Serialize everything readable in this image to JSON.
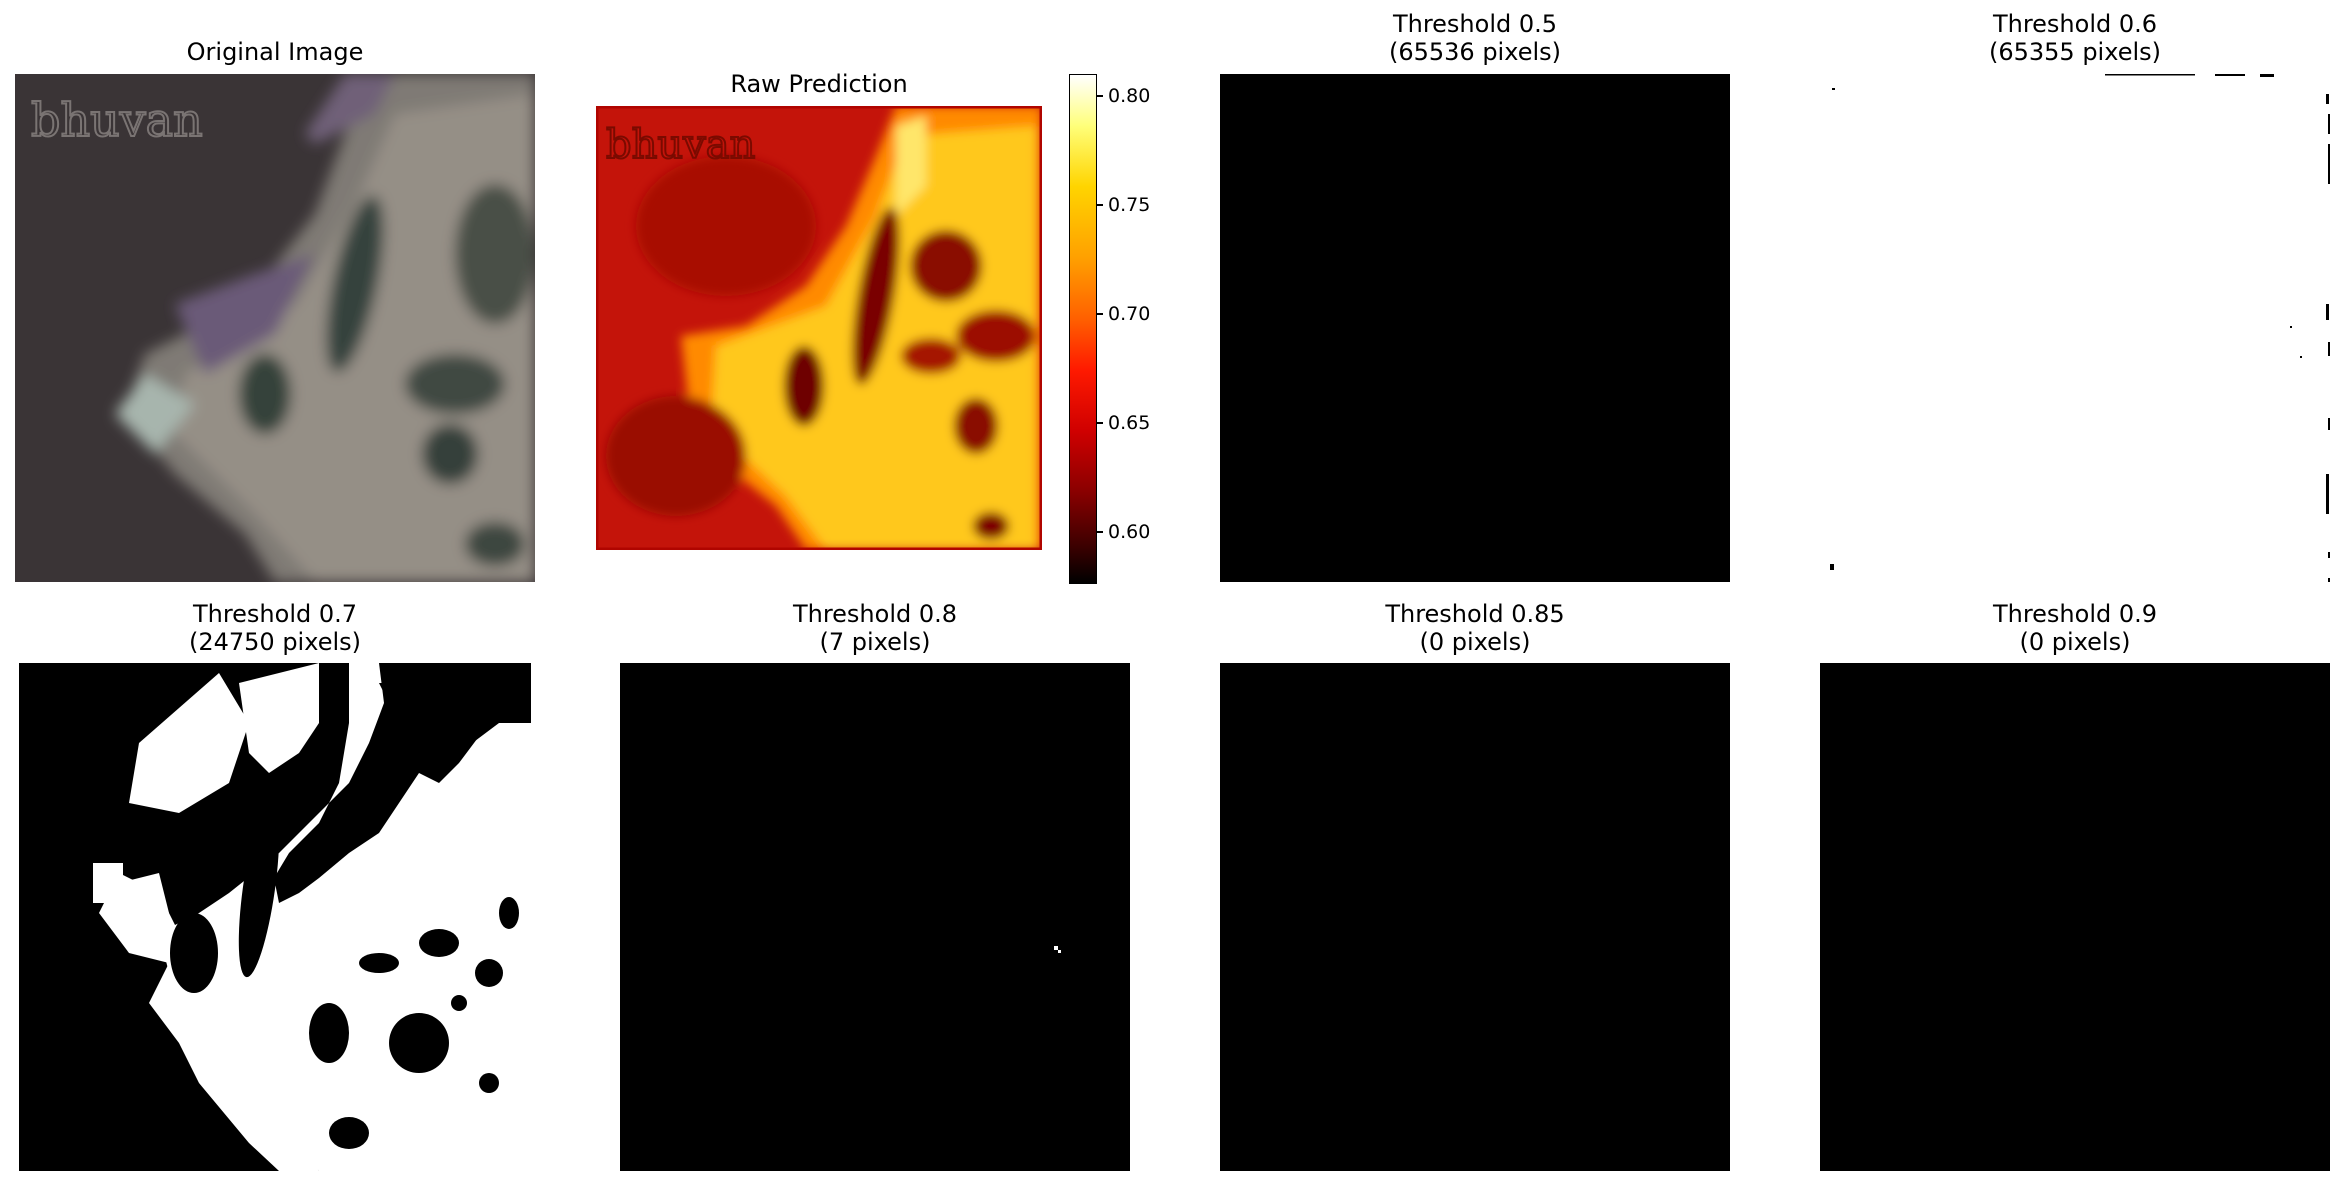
{
  "panels": [
    {
      "title_line1": "Original Image",
      "title_line2": ""
    },
    {
      "title_line1": "Raw Prediction",
      "title_line2": ""
    },
    {
      "title_line1": "Threshold 0.5",
      "title_line2": "(65536 pixels)"
    },
    {
      "title_line1": "Threshold 0.6",
      "title_line2": "(65355 pixels)"
    },
    {
      "title_line1": "Threshold 0.7",
      "title_line2": "(24750 pixels)"
    },
    {
      "title_line1": "Threshold 0.8",
      "title_line2": "(7 pixels)"
    },
    {
      "title_line1": "Threshold 0.85",
      "title_line2": "(0 pixels)"
    },
    {
      "title_line1": "Threshold 0.9",
      "title_line2": "(0 pixels)"
    }
  ],
  "watermark": "bhuvan",
  "colorbar": {
    "colormap": "hot",
    "range": [
      0.575,
      0.81
    ],
    "ticks": [
      "0.80",
      "0.75",
      "0.70",
      "0.65",
      "0.60"
    ]
  },
  "colors": {
    "mask_foreground": "#ffffff",
    "mask_background": "#000000",
    "water": "#3a3436",
    "land": "#8f8b84"
  }
}
